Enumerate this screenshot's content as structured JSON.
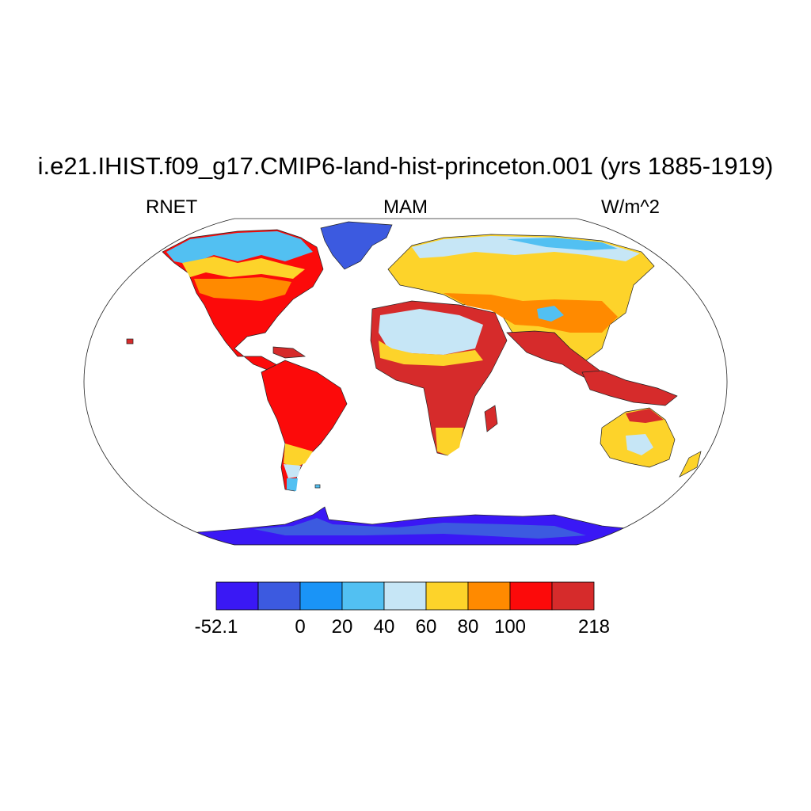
{
  "title": "i.e21.IHIST.f09_g17.CMIP6-land-hist-princeton.001 (yrs 1885-1919)",
  "variable": "RNET",
  "season": "MAM",
  "units": "W/m^2",
  "colorbar": {
    "colors": [
      "#3a18f5",
      "#3c5ae0",
      "#1a94f7",
      "#52c0f2",
      "#c6e6f6",
      "#fdd32a",
      "#ff8a00",
      "#fc0a0a",
      "#d62b2b"
    ],
    "labels": [
      "-52.1",
      "0",
      "20",
      "40",
      "60",
      "80",
      "100",
      "218"
    ]
  },
  "map": {
    "projection": "Robinson",
    "field": "net radiation",
    "colors": {
      "antarctica": "#3a18f5",
      "ice": "#3c5ae0",
      "cold": "#1a94f7",
      "cool": "#52c0f2",
      "mild": "#c6e6f6",
      "warm": "#fdd32a",
      "hot": "#ff8a00",
      "tropical": "#fc0a0a",
      "max": "#d62b2b"
    }
  }
}
